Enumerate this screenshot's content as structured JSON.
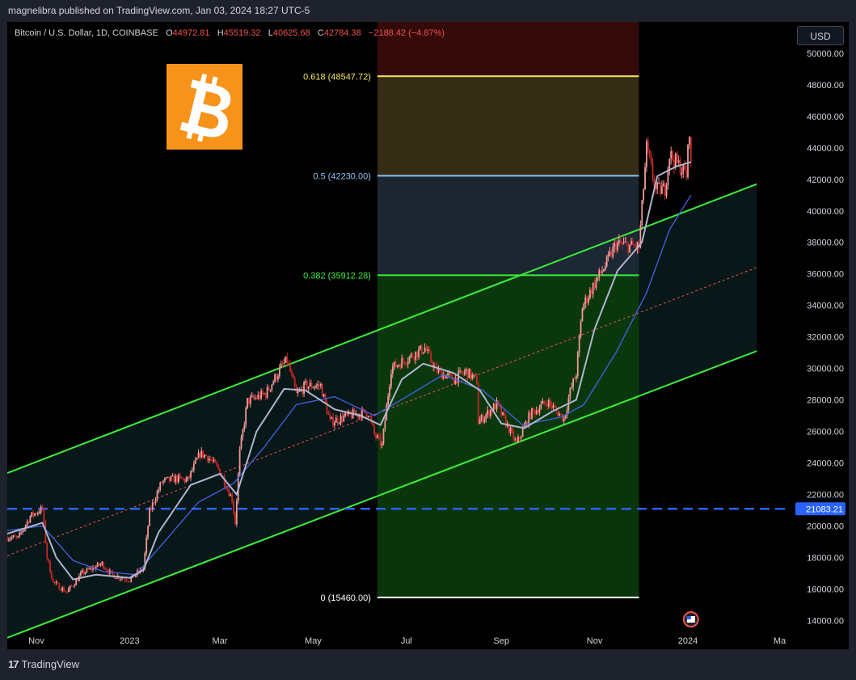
{
  "header": {
    "published_by": "magnelibra published on TradingView.com, Jan 03, 2024 18:27 UTC-5"
  },
  "legend": {
    "symbol": "Bitcoin / U.S. Dollar, 1D, COINBASE",
    "o_label": "O",
    "o_value": "44972.81",
    "h_label": "H",
    "h_value": "45519.32",
    "l_label": "L",
    "l_value": "40625.68",
    "c_label": "C",
    "c_value": "42784.38",
    "change": "−2188.42 (−4.87%)"
  },
  "currency_button": "USD",
  "footer": {
    "brand": "TradingView",
    "mark": "17"
  },
  "colors": {
    "up": "#ef9a9a",
    "down": "#c62828",
    "channel": "#3bef3b",
    "fib_0618": "#f5e85f",
    "fib_05": "#8fc3f0",
    "fib_0382": "#3bef3b",
    "fib_0": "#ffffff",
    "support": "#2962ff",
    "ma_fast": "#b0b6d0",
    "ma_slow": "#4563e6",
    "logo_bg": "#f7931a"
  },
  "logo": {
    "glyph": "₿",
    "icon": "bitcoin-logo-icon"
  },
  "chart_data": {
    "type": "candlestick",
    "y_axis": {
      "range": [
        13500,
        52000
      ],
      "ticks": [
        14000,
        16000,
        18000,
        20000,
        22000,
        24000,
        26000,
        28000,
        30000,
        32000,
        34000,
        36000,
        38000,
        40000,
        42000,
        44000,
        46000,
        48000,
        50000
      ],
      "tick_labels": [
        "14000.00",
        "16000.00",
        "18000.00",
        "20000.00",
        "22000.00",
        "24000.00",
        "26000.00",
        "28000.00",
        "30000.00",
        "32000.00",
        "34000.00",
        "36000.00",
        "38000.00",
        "40000.00",
        "42000.00",
        "44000.00",
        "46000.00",
        "48000.00",
        "50000.00"
      ]
    },
    "x_axis": {
      "range": [
        "2022-10-13",
        "2024-03-06"
      ],
      "ticks": [
        {
          "date": "2022-11-01",
          "label": "Nov"
        },
        {
          "date": "2023-01-01",
          "label": "2023"
        },
        {
          "date": "2023-03-01",
          "label": "Mar"
        },
        {
          "date": "2023-05-01",
          "label": "May"
        },
        {
          "date": "2023-07-01",
          "label": "Jul"
        },
        {
          "date": "2023-09-01",
          "label": "Sep"
        },
        {
          "date": "2023-11-01",
          "label": "Nov"
        },
        {
          "date": "2024-01-01",
          "label": "2024"
        },
        {
          "date": "2024-03-01",
          "label": "Ma"
        }
      ]
    },
    "price_anchors": [
      [
        "2022-10-13",
        19300
      ],
      [
        "2022-10-20",
        19200
      ],
      [
        "2022-10-28",
        20600
      ],
      [
        "2022-11-05",
        21100
      ],
      [
        "2022-11-08",
        18000
      ],
      [
        "2022-11-12",
        16400
      ],
      [
        "2022-11-21",
        15800
      ],
      [
        "2022-12-01",
        17000
      ],
      [
        "2022-12-14",
        17600
      ],
      [
        "2022-12-20",
        16900
      ],
      [
        "2023-01-01",
        16600
      ],
      [
        "2023-01-10",
        17300
      ],
      [
        "2023-01-14",
        20900
      ],
      [
        "2023-01-22",
        22800
      ],
      [
        "2023-01-31",
        23000
      ],
      [
        "2023-02-08",
        22900
      ],
      [
        "2023-02-16",
        24600
      ],
      [
        "2023-02-21",
        24400
      ],
      [
        "2023-03-01",
        23500
      ],
      [
        "2023-03-09",
        21700
      ],
      [
        "2023-03-11",
        20200
      ],
      [
        "2023-03-14",
        24700
      ],
      [
        "2023-03-19",
        27900
      ],
      [
        "2023-03-31",
        28400
      ],
      [
        "2023-04-11",
        30200
      ],
      [
        "2023-04-14",
        30500
      ],
      [
        "2023-04-20",
        28300
      ],
      [
        "2023-04-26",
        28900
      ],
      [
        "2023-05-06",
        28900
      ],
      [
        "2023-05-12",
        26600
      ],
      [
        "2023-05-28",
        27100
      ],
      [
        "2023-06-06",
        27200
      ],
      [
        "2023-06-10",
        25800
      ],
      [
        "2023-06-15",
        25100
      ],
      [
        "2023-06-21",
        30000
      ],
      [
        "2023-07-01",
        30600
      ],
      [
        "2023-07-13",
        31300
      ],
      [
        "2023-07-20",
        29900
      ],
      [
        "2023-08-01",
        29300
      ],
      [
        "2023-08-09",
        29800
      ],
      [
        "2023-08-16",
        29200
      ],
      [
        "2023-08-17",
        26600
      ],
      [
        "2023-08-29",
        27700
      ],
      [
        "2023-09-11",
        25200
      ],
      [
        "2023-09-20",
        27100
      ],
      [
        "2023-10-01",
        27900
      ],
      [
        "2023-10-12",
        26800
      ],
      [
        "2023-10-16",
        28500
      ],
      [
        "2023-10-20",
        29700
      ],
      [
        "2023-10-24",
        33900
      ],
      [
        "2023-11-01",
        35400
      ],
      [
        "2023-11-09",
        36700
      ],
      [
        "2023-11-15",
        37900
      ],
      [
        "2023-11-30",
        37700
      ],
      [
        "2023-12-05",
        44000
      ],
      [
        "2023-12-11",
        41300
      ],
      [
        "2023-12-17",
        41400
      ],
      [
        "2023-12-20",
        43600
      ],
      [
        "2023-12-31",
        42300
      ],
      [
        "2024-01-02",
        45200
      ],
      [
        "2024-01-03",
        42800
      ]
    ],
    "ma_fast_anchors": [
      [
        "2022-10-13",
        19500
      ],
      [
        "2022-11-05",
        20200
      ],
      [
        "2022-11-14",
        18000
      ],
      [
        "2022-11-25",
        16600
      ],
      [
        "2022-12-10",
        16900
      ],
      [
        "2023-01-01",
        16700
      ],
      [
        "2023-01-10",
        17200
      ],
      [
        "2023-01-20",
        19600
      ],
      [
        "2023-02-10",
        22600
      ],
      [
        "2023-03-01",
        23300
      ],
      [
        "2023-03-12",
        22000
      ],
      [
        "2023-03-25",
        26000
      ],
      [
        "2023-04-12",
        28700
      ],
      [
        "2023-04-26",
        28600
      ],
      [
        "2023-05-15",
        27400
      ],
      [
        "2023-06-01",
        27000
      ],
      [
        "2023-06-14",
        26400
      ],
      [
        "2023-06-28",
        29300
      ],
      [
        "2023-07-12",
        30300
      ],
      [
        "2023-08-01",
        29700
      ],
      [
        "2023-08-18",
        28600
      ],
      [
        "2023-09-01",
        26500
      ],
      [
        "2023-09-16",
        26200
      ],
      [
        "2023-10-05",
        27300
      ],
      [
        "2023-10-20",
        28000
      ],
      [
        "2023-11-01",
        32500
      ],
      [
        "2023-11-16",
        36200
      ],
      [
        "2023-12-02",
        38000
      ],
      [
        "2023-12-12",
        42200
      ],
      [
        "2023-12-24",
        42800
      ],
      [
        "2024-01-03",
        43100
      ]
    ],
    "ma_slow_anchors": [
      [
        "2022-10-13",
        19700
      ],
      [
        "2022-11-05",
        20000
      ],
      [
        "2022-11-25",
        17800
      ],
      [
        "2022-12-15",
        17100
      ],
      [
        "2023-01-05",
        16900
      ],
      [
        "2023-01-22",
        18800
      ],
      [
        "2023-02-15",
        21500
      ],
      [
        "2023-03-10",
        22700
      ],
      [
        "2023-03-30",
        25000
      ],
      [
        "2023-04-20",
        27700
      ],
      [
        "2023-05-15",
        28200
      ],
      [
        "2023-06-10",
        27000
      ],
      [
        "2023-07-01",
        28200
      ],
      [
        "2023-07-25",
        29600
      ],
      [
        "2023-08-20",
        28600
      ],
      [
        "2023-09-15",
        26400
      ],
      [
        "2023-10-10",
        26900
      ],
      [
        "2023-10-25",
        27700
      ],
      [
        "2023-11-15",
        31000
      ],
      [
        "2023-12-05",
        34800
      ],
      [
        "2023-12-20",
        38800
      ],
      [
        "2024-01-03",
        41000
      ]
    ],
    "channel": {
      "upper": {
        "start": [
          "2022-10-13",
          23350
        ],
        "end": [
          "2024-02-15",
          41700
        ]
      },
      "lower": {
        "start": [
          "2022-10-13",
          12900
        ],
        "end": [
          "2024-02-15",
          31100
        ]
      },
      "mid": {
        "start": [
          "2022-10-13",
          18100
        ],
        "end": [
          "2024-02-15",
          36400
        ]
      }
    },
    "fib_retracement": {
      "start_date": "2023-06-12",
      "end_date": "2023-11-30",
      "levels": [
        {
          "ratio": 0.618,
          "price": 48547.72,
          "label": "0.618 (48547.72)"
        },
        {
          "ratio": 0.5,
          "price": 42230.0,
          "label": "0.5 (42230.00)"
        },
        {
          "ratio": 0.382,
          "price": 35912.28,
          "label": "0.382 (35912.28)"
        },
        {
          "ratio": 0,
          "price": 15460.0,
          "label": "0 (15460.00)"
        }
      ],
      "zones": [
        {
          "from": 48547.72,
          "to": 52000,
          "color": "#3b0b0b"
        },
        {
          "from": 42230.0,
          "to": 48547.72,
          "color": "#3a3116"
        },
        {
          "from": 35912.28,
          "to": 42230.0,
          "color": "#1f2a36"
        },
        {
          "from": 15460.0,
          "to": 35912.28,
          "color": "#0b3b0b"
        }
      ]
    },
    "support_line": {
      "price": 21083.21,
      "label": "21083.21"
    }
  }
}
